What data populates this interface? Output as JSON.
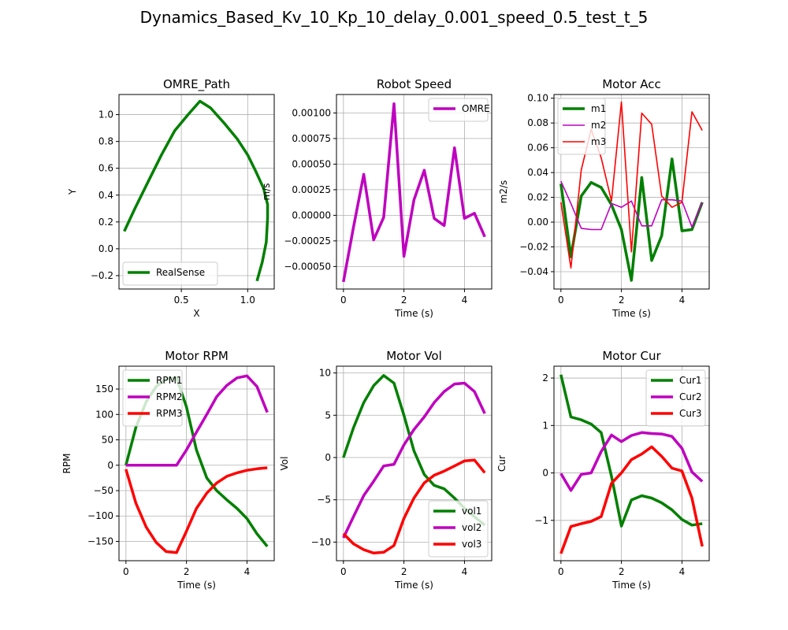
{
  "figure_title": "Dynamics_Based_Kv_10_Kp_10_delay_0.001_speed_0.5_test_t_5",
  "chart_data": [
    {
      "id": "path",
      "type": "line",
      "title": "OMRE_Path",
      "xlabel": "X",
      "ylabel": "Y",
      "xlim": [
        0.03,
        1.2
      ],
      "ylim": [
        -0.3,
        1.15
      ],
      "xticks": [
        {
          "v": 0.5,
          "label": "0.5"
        },
        {
          "v": 1.0,
          "label": "1.0"
        }
      ],
      "yticks": [
        {
          "v": -0.2,
          "label": "−0.2"
        },
        {
          "v": 0.0,
          "label": "0.0"
        },
        {
          "v": 0.2,
          "label": "0.2"
        },
        {
          "v": 0.4,
          "label": "0.4"
        },
        {
          "v": 0.6,
          "label": "0.6"
        },
        {
          "v": 0.8,
          "label": "0.8"
        },
        {
          "v": 1.0,
          "label": "1.0"
        }
      ],
      "legend": "lower-left",
      "grid": true,
      "series": [
        {
          "name": "RealSense",
          "color": "#008000",
          "width": 3.5,
          "x": [
            0.07,
            0.15,
            0.25,
            0.35,
            0.45,
            0.55,
            0.64,
            0.72,
            0.82,
            0.92,
            1.0,
            1.06,
            1.12,
            1.15,
            1.15,
            1.14,
            1.11,
            1.07
          ],
          "y": [
            0.13,
            0.3,
            0.5,
            0.7,
            0.88,
            1.0,
            1.1,
            1.05,
            0.94,
            0.82,
            0.7,
            0.58,
            0.45,
            0.33,
            0.23,
            0.05,
            -0.1,
            -0.24
          ]
        }
      ]
    },
    {
      "id": "speed",
      "type": "line",
      "title": "Robot Speed",
      "xlabel": "Time (s)",
      "ylabel": "m/s",
      "xlim": [
        -0.23,
        4.9
      ],
      "ylim": [
        -0.00072,
        0.00118
      ],
      "xticks": [
        {
          "v": 0,
          "label": "0"
        },
        {
          "v": 2,
          "label": "2"
        },
        {
          "v": 4,
          "label": "4"
        }
      ],
      "yticks": [
        {
          "v": -0.0005,
          "label": "−0.00050"
        },
        {
          "v": -0.00025,
          "label": "−0.00025"
        },
        {
          "v": 0,
          "label": "0.00000"
        },
        {
          "v": 0.00025,
          "label": "0.00025"
        },
        {
          "v": 0.0005,
          "label": "0.00050"
        },
        {
          "v": 0.00075,
          "label": "0.00075"
        },
        {
          "v": 0.001,
          "label": "0.00100"
        }
      ],
      "legend": "upper-right",
      "grid": true,
      "series": [
        {
          "name": "OMRE",
          "color": "#bf00bf",
          "width": 3.5,
          "x": [
            0,
            0.33,
            0.67,
            1.0,
            1.33,
            1.67,
            2.0,
            2.33,
            2.67,
            3.0,
            3.33,
            3.67,
            4.0,
            4.33,
            4.67
          ],
          "y": [
            -0.00065,
            -0.00012,
            0.0004,
            -0.00024,
            -2e-05,
            0.00109,
            -0.0004,
            0.00015,
            0.00044,
            -3e-05,
            -0.0001,
            0.00066,
            -3e-05,
            2e-05,
            -0.00021
          ]
        }
      ]
    },
    {
      "id": "acc",
      "type": "line",
      "title": "Motor Acc",
      "xlabel": "Time (s)",
      "ylabel": "m2/s",
      "xlim": [
        -0.23,
        4.9
      ],
      "ylim": [
        -0.054,
        0.103
      ],
      "xticks": [
        {
          "v": 0,
          "label": "0"
        },
        {
          "v": 2,
          "label": "2"
        },
        {
          "v": 4,
          "label": "4"
        }
      ],
      "yticks": [
        {
          "v": -0.04,
          "label": "−0.04"
        },
        {
          "v": -0.02,
          "label": "−0.02"
        },
        {
          "v": 0.0,
          "label": "0.00"
        },
        {
          "v": 0.02,
          "label": "0.02"
        },
        {
          "v": 0.04,
          "label": "0.04"
        },
        {
          "v": 0.06,
          "label": "0.06"
        },
        {
          "v": 0.08,
          "label": "0.08"
        },
        {
          "v": 0.1,
          "label": "0.10"
        }
      ],
      "legend": "upper-left",
      "grid": true,
      "series": [
        {
          "name": "m1",
          "color": "#008000",
          "width": 3.5,
          "x": [
            0,
            0.33,
            0.67,
            1.0,
            1.33,
            1.67,
            2.0,
            2.33,
            2.67,
            3.0,
            3.33,
            3.67,
            4.0,
            4.33,
            4.67
          ],
          "y": [
            0.031,
            -0.028,
            0.021,
            0.032,
            0.028,
            0.014,
            -0.006,
            -0.047,
            0.036,
            -0.031,
            -0.011,
            0.051,
            -0.007,
            -0.006,
            0.016
          ]
        },
        {
          "name": "m2",
          "color": "#bf00bf",
          "width": 1.6,
          "x": [
            0,
            0.33,
            0.67,
            1.0,
            1.33,
            1.67,
            2.0,
            2.33,
            2.67,
            3.0,
            3.33,
            3.67,
            4.0,
            4.33,
            4.67
          ],
          "y": [
            0.033,
            0.015,
            -0.005,
            -0.006,
            -0.006,
            0.015,
            0.012,
            0.017,
            -0.003,
            -0.003,
            0.018,
            0.018,
            0.017,
            -0.004,
            0.016
          ]
        },
        {
          "name": "m3",
          "color": "#ff0000",
          "width": 1.6,
          "x": [
            0,
            0.33,
            0.67,
            1.0,
            1.33,
            1.67,
            2.0,
            2.33,
            2.67,
            3.0,
            3.33,
            3.67,
            4.0,
            4.33,
            4.67
          ],
          "y": [
            0.016,
            -0.037,
            0.042,
            0.075,
            0.052,
            0.017,
            0.097,
            -0.024,
            0.088,
            0.079,
            0.021,
            0.012,
            0.016,
            0.089,
            0.074
          ]
        }
      ]
    },
    {
      "id": "rpm",
      "type": "line",
      "title": "Motor RPM",
      "xlabel": "Time (s)",
      "ylabel": "RPM",
      "xlim": [
        -0.23,
        4.9
      ],
      "ylim": [
        -188,
        195
      ],
      "xticks": [
        {
          "v": 0,
          "label": "0"
        },
        {
          "v": 2,
          "label": "2"
        },
        {
          "v": 4,
          "label": "4"
        }
      ],
      "yticks": [
        {
          "v": -150,
          "label": "−150"
        },
        {
          "v": -100,
          "label": "−100"
        },
        {
          "v": -50,
          "label": "−50"
        },
        {
          "v": 0,
          "label": "0"
        },
        {
          "v": 50,
          "label": "50"
        },
        {
          "v": 100,
          "label": "100"
        },
        {
          "v": 150,
          "label": "150"
        }
      ],
      "legend": "upper-left",
      "grid": true,
      "series": [
        {
          "name": "RPM1",
          "color": "#008000",
          "width": 3.5,
          "x": [
            0,
            0.33,
            0.67,
            1.0,
            1.33,
            1.67,
            2.0,
            2.33,
            2.67,
            3.0,
            3.33,
            3.67,
            4.0,
            4.33,
            4.67
          ],
          "y": [
            0,
            75,
            125,
            155,
            170,
            172,
            115,
            30,
            -25,
            -50,
            -68,
            -85,
            -105,
            -135,
            -160
          ]
        },
        {
          "name": "RPM2",
          "color": "#bf00bf",
          "width": 3.5,
          "x": [
            0,
            0.33,
            0.67,
            1.0,
            1.33,
            1.67,
            2.0,
            2.33,
            2.67,
            3.0,
            3.33,
            3.67,
            4.0,
            4.33,
            4.67
          ],
          "y": [
            0,
            0,
            0,
            0,
            0,
            0,
            30,
            65,
            100,
            135,
            157,
            172,
            176,
            155,
            104
          ]
        },
        {
          "name": "RPM3",
          "color": "#ff0000",
          "width": 3.5,
          "x": [
            0,
            0.33,
            0.67,
            1.0,
            1.33,
            1.67,
            2.0,
            2.33,
            2.67,
            3.0,
            3.33,
            3.67,
            4.0,
            4.33,
            4.67
          ],
          "y": [
            -8,
            -75,
            -122,
            -152,
            -170,
            -172,
            -130,
            -85,
            -55,
            -35,
            -22,
            -15,
            -10,
            -7,
            -5
          ]
        }
      ]
    },
    {
      "id": "vol",
      "type": "line",
      "title": "Motor Vol",
      "xlabel": "Time (s)",
      "ylabel": "Vol",
      "xlim": [
        -0.23,
        4.9
      ],
      "ylim": [
        -12.2,
        10.8
      ],
      "xticks": [
        {
          "v": 0,
          "label": "0"
        },
        {
          "v": 2,
          "label": "2"
        },
        {
          "v": 4,
          "label": "4"
        }
      ],
      "yticks": [
        {
          "v": -10,
          "label": "−10"
        },
        {
          "v": -5,
          "label": "−5"
        },
        {
          "v": 0,
          "label": "0"
        },
        {
          "v": 5,
          "label": "5"
        },
        {
          "v": 10,
          "label": "10"
        }
      ],
      "legend": "lower-right",
      "grid": true,
      "series": [
        {
          "name": "vol1",
          "color": "#008000",
          "width": 3.5,
          "x": [
            0,
            0.33,
            0.67,
            1.0,
            1.33,
            1.67,
            2.0,
            2.33,
            2.67,
            3.0,
            3.33,
            3.67,
            4.0,
            4.33,
            4.67
          ],
          "y": [
            0,
            3.5,
            6.5,
            8.5,
            9.7,
            8.8,
            5.0,
            0.8,
            -2.0,
            -3.3,
            -3.7,
            -4.8,
            -6.0,
            -7.0,
            -8.0
          ]
        },
        {
          "name": "vol2",
          "color": "#bf00bf",
          "width": 3.5,
          "x": [
            0,
            0.33,
            0.67,
            1.0,
            1.33,
            1.67,
            2.0,
            2.33,
            2.67,
            3.0,
            3.33,
            3.67,
            4.0,
            4.33,
            4.67
          ],
          "y": [
            -9.5,
            -7.0,
            -4.5,
            -2.8,
            -1.0,
            -0.8,
            1.5,
            3.3,
            4.8,
            6.5,
            7.8,
            8.7,
            8.8,
            7.8,
            5.2
          ]
        },
        {
          "name": "vol3",
          "color": "#ff0000",
          "width": 3.5,
          "x": [
            0,
            0.33,
            0.67,
            1.0,
            1.33,
            1.67,
            2.0,
            2.33,
            2.67,
            3.0,
            3.33,
            3.67,
            4.0,
            4.33,
            4.67
          ],
          "y": [
            -9.0,
            -10.2,
            -10.9,
            -11.3,
            -11.2,
            -10.4,
            -7.2,
            -4.8,
            -3.0,
            -2.1,
            -1.6,
            -1.0,
            -0.4,
            -0.3,
            -1.8
          ]
        }
      ]
    },
    {
      "id": "cur",
      "type": "line",
      "title": "Motor Cur",
      "xlabel": "Time (s)",
      "ylabel": "Cur",
      "xlim": [
        -0.23,
        4.9
      ],
      "ylim": [
        -1.85,
        2.25
      ],
      "xticks": [
        {
          "v": 0,
          "label": "0"
        },
        {
          "v": 2,
          "label": "2"
        },
        {
          "v": 4,
          "label": "4"
        }
      ],
      "yticks": [
        {
          "v": -1,
          "label": "−1"
        },
        {
          "v": 0,
          "label": "0"
        },
        {
          "v": 1,
          "label": "1"
        },
        {
          "v": 2,
          "label": "2"
        }
      ],
      "legend": "upper-right",
      "grid": true,
      "series": [
        {
          "name": "Cur1",
          "color": "#008000",
          "width": 3.5,
          "x": [
            0,
            0.33,
            0.67,
            1.0,
            1.33,
            1.67,
            2.0,
            2.33,
            2.67,
            3.0,
            3.33,
            3.67,
            4.0,
            4.33,
            4.67
          ],
          "y": [
            2.07,
            1.18,
            1.12,
            1.03,
            0.85,
            -0.07,
            -1.12,
            -0.57,
            -0.48,
            -0.53,
            -0.63,
            -0.78,
            -0.98,
            -1.1,
            -1.07
          ]
        },
        {
          "name": "Cur2",
          "color": "#bf00bf",
          "width": 3.5,
          "x": [
            0,
            0.33,
            0.67,
            1.0,
            1.33,
            1.67,
            2.0,
            2.33,
            2.67,
            3.0,
            3.33,
            3.67,
            4.0,
            4.33,
            4.67
          ],
          "y": [
            -0.01,
            -0.37,
            -0.03,
            0.0,
            0.45,
            0.8,
            0.66,
            0.79,
            0.85,
            0.83,
            0.82,
            0.77,
            0.52,
            0.02,
            -0.18
          ]
        },
        {
          "name": "Cur3",
          "color": "#ff0000",
          "width": 3.5,
          "x": [
            0,
            0.33,
            0.67,
            1.0,
            1.33,
            1.67,
            2.0,
            2.33,
            2.67,
            3.0,
            3.33,
            3.67,
            4.0,
            4.33,
            4.67
          ],
          "y": [
            -1.7,
            -1.13,
            -1.07,
            -1.02,
            -0.92,
            -0.22,
            0.0,
            0.28,
            0.4,
            0.55,
            0.35,
            0.1,
            0.04,
            -0.53,
            -1.55
          ]
        }
      ]
    }
  ]
}
